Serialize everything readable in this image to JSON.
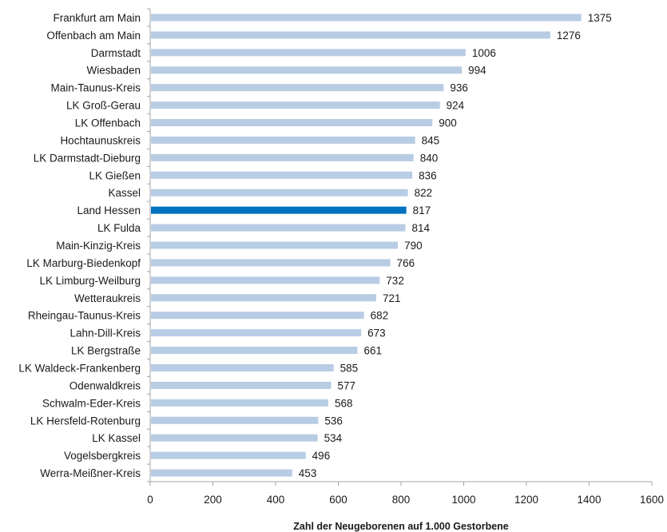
{
  "chart_data": {
    "type": "bar",
    "orientation": "horizontal",
    "categories": [
      "Frankfurt am Main",
      "Offenbach am Main",
      "Darmstadt",
      "Wiesbaden",
      "Main-Taunus-Kreis",
      "LK Groß-Gerau",
      "LK Offenbach",
      "Hochtaunuskreis",
      "LK Darmstadt-Dieburg",
      "LK Gießen",
      "Kassel",
      "Land Hessen",
      "LK Fulda",
      "Main-Kinzig-Kreis",
      "LK Marburg-Biedenkopf",
      "LK Limburg-Weilburg",
      "Wetteraukreis",
      "Rheingau-Taunus-Kreis",
      "Lahn-Dill-Kreis",
      "LK Bergstraße",
      "LK Waldeck-Frankenberg",
      "Odenwaldkreis",
      "Schwalm-Eder-Kreis",
      "LK Hersfeld-Rotenburg",
      "LK Kassel",
      "Vogelsbergkreis",
      "Werra-Meißner-Kreis"
    ],
    "values": [
      1375,
      1276,
      1006,
      994,
      936,
      924,
      900,
      845,
      840,
      836,
      822,
      817,
      814,
      790,
      766,
      732,
      721,
      682,
      673,
      661,
      585,
      577,
      568,
      536,
      534,
      496,
      453
    ],
    "highlight_category": "Land Hessen",
    "xlabel": "Zahl der Neugeborenen auf 1.000 Gestorbene",
    "xlim": [
      0,
      1600
    ],
    "xticks": [
      "0",
      "200",
      "400",
      "600",
      "800",
      "1000",
      "1200",
      "1400",
      "1600"
    ],
    "grid": false,
    "colors": {
      "bar": "#b8cce4",
      "highlight": "#0070c0",
      "axis": "#a6a6a6"
    }
  }
}
